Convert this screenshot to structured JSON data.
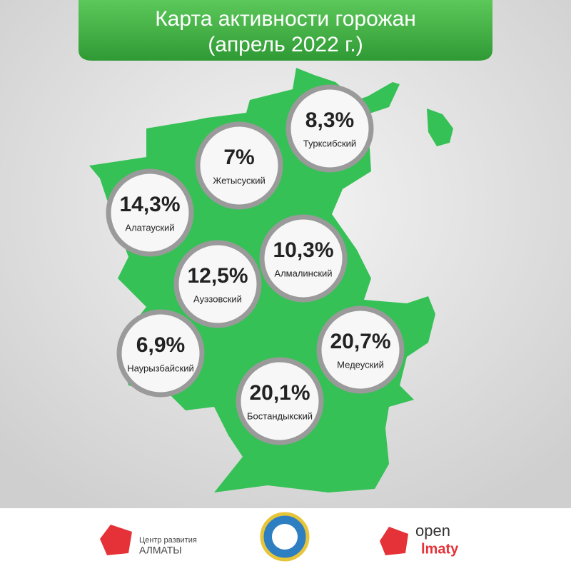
{
  "header": {
    "title_line1": "Карта активности горожан",
    "title_line2": "(апрель 2022 г.)"
  },
  "districts": [
    {
      "value": "8,3%",
      "name": "Турксибский"
    },
    {
      "value": "7%",
      "name": "Жетысуский"
    },
    {
      "value": "14,3%",
      "name": "Алатауский"
    },
    {
      "value": "10,3%",
      "name": "Алмалинский"
    },
    {
      "value": "12,5%",
      "name": "Ауэзовский"
    },
    {
      "value": "6,9%",
      "name": "Наурызбайский"
    },
    {
      "value": "20,7%",
      "name": "Медеуский"
    },
    {
      "value": "20,1%",
      "name": "Бостандыкский"
    }
  ],
  "footer": {
    "logo1_line1": "Центр развития",
    "logo1_line2": "АЛМАТЫ",
    "logo3_line1": "open",
    "logo3_line2": "lmaty"
  }
}
